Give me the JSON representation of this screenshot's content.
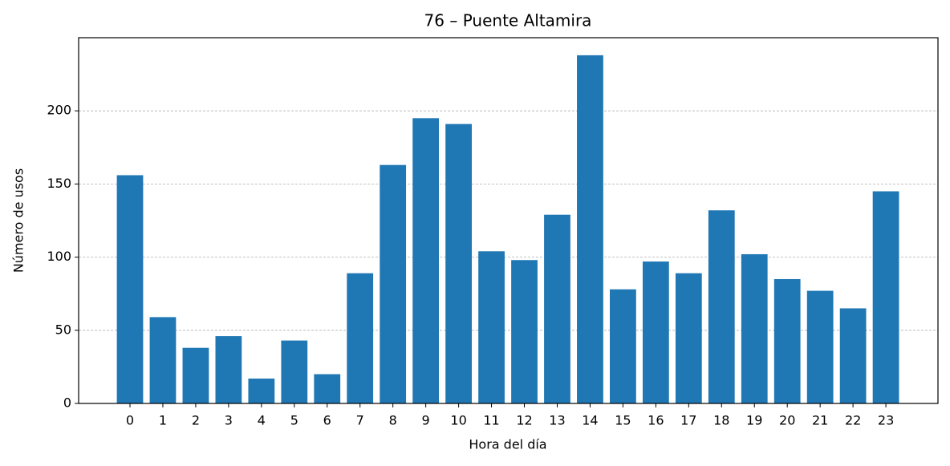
{
  "chart_data": {
    "type": "bar",
    "title": "76 – Puente Altamira",
    "x_label": "Hora del día",
    "y_label": "Número de usos",
    "categories": [
      "0",
      "1",
      "2",
      "3",
      "4",
      "5",
      "6",
      "7",
      "8",
      "9",
      "10",
      "11",
      "12",
      "13",
      "14",
      "15",
      "16",
      "17",
      "18",
      "19",
      "20",
      "21",
      "22",
      "23"
    ],
    "values": [
      156,
      59,
      38,
      46,
      17,
      43,
      20,
      89,
      163,
      195,
      191,
      104,
      98,
      129,
      238,
      78,
      97,
      89,
      132,
      102,
      85,
      77,
      65,
      145
    ],
    "color": "#1f77b4",
    "ylim": [
      0,
      250
    ],
    "yticks": [
      0,
      50,
      100,
      150,
      200
    ],
    "grid": true
  }
}
